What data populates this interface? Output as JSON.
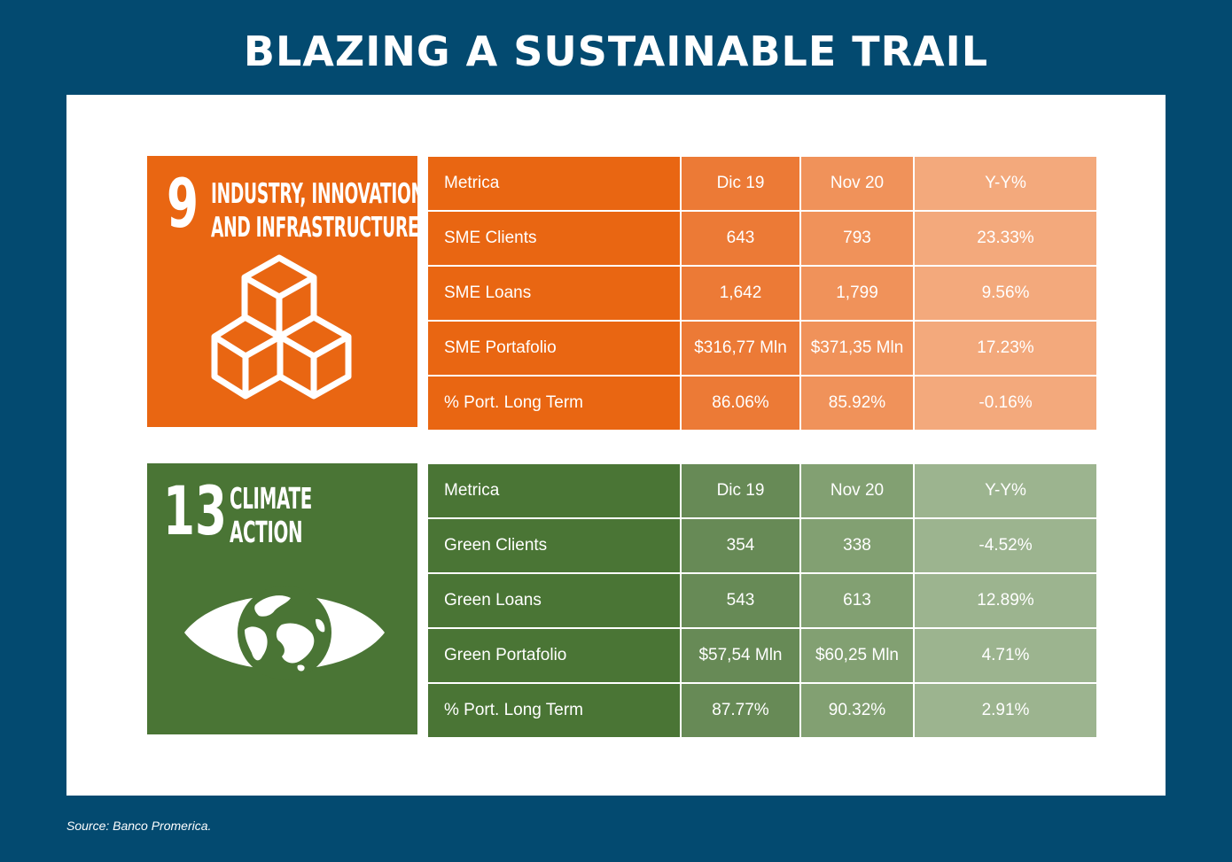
{
  "title": "BLAZING A SUSTAINABLE TRAIL",
  "sdg9": {
    "number": "9",
    "label_line1": "INDUSTRY, INNOVATION",
    "label_line2": "AND INFRASTRUCTURE",
    "color": "#e96612",
    "icon": "stacked-cubes-icon",
    "table": {
      "headers": [
        "Metrica",
        "Dic 19",
        "Nov 20",
        "Y-Y%"
      ],
      "rows": [
        [
          "SME Clients",
          "643",
          "793",
          "23.33%"
        ],
        [
          "SME Loans",
          "1,642",
          "1,799",
          "9.56%"
        ],
        [
          "SME Portafolio",
          "$316,77 Mln",
          "$371,35 Mln",
          "17.23%"
        ],
        [
          "% Port. Long Term",
          "86.06%",
          "85.92%",
          "-0.16%"
        ]
      ]
    }
  },
  "sdg13": {
    "number": "13",
    "label_line1": "CLIMATE",
    "label_line2": "ACTION",
    "color": "#4a7535",
    "icon": "eye-globe-icon",
    "table": {
      "headers": [
        "Metrica",
        "Dic 19",
        "Nov 20",
        "Y-Y%"
      ],
      "rows": [
        [
          "Green Clients",
          "354",
          "338",
          "-4.52%"
        ],
        [
          "Green Loans",
          "543",
          "613",
          "12.89%"
        ],
        [
          "Green Portafolio",
          "$57,54 Mln",
          "$60,25 Mln",
          "4.71%"
        ],
        [
          "% Port. Long Term",
          "87.77%",
          "90.32%",
          "2.91%"
        ]
      ]
    }
  },
  "source": "Source: Banco Promerica.",
  "colors": {
    "background": "#034a70",
    "panel": "#ffffff"
  }
}
